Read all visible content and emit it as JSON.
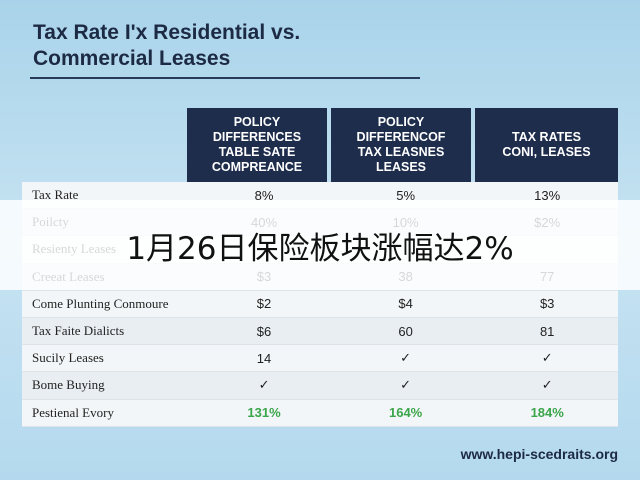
{
  "title": [
    "Tax Rate I'x Residential vs.",
    "Commercial Leases"
  ],
  "table": {
    "header": [
      "POLICY DIFFERENCES TABLE SATE COMPREANCE",
      "POLICY DIFFERENCOF TAX LEASNES LEASES",
      "TAX RATES CONI, LEASES"
    ],
    "rows": [
      [
        "Tax Rate",
        "8%",
        "5%",
        "13%"
      ],
      [
        "Poilcty",
        "40%",
        "10%",
        "$2%"
      ],
      [
        "Resienty Leases"
      ],
      [
        "Creeat Leases",
        "$3",
        "38",
        "77"
      ],
      [
        "Come Plunting Conmoure",
        "$2",
        "$4",
        "$3"
      ],
      [
        "Tax Faite Dialicts",
        "$6",
        "60",
        "81"
      ],
      [
        "Sucily Leases",
        "14",
        "✓",
        "✓"
      ],
      [
        "Bome Buying",
        "✓",
        "✓",
        "✓"
      ],
      [
        "Pestienal Evory",
        "131%",
        "164%",
        "184%"
      ]
    ]
  },
  "banner": "1月26日保险板块涨幅达2%",
  "footer": "www.hepi-scedraits.org"
}
